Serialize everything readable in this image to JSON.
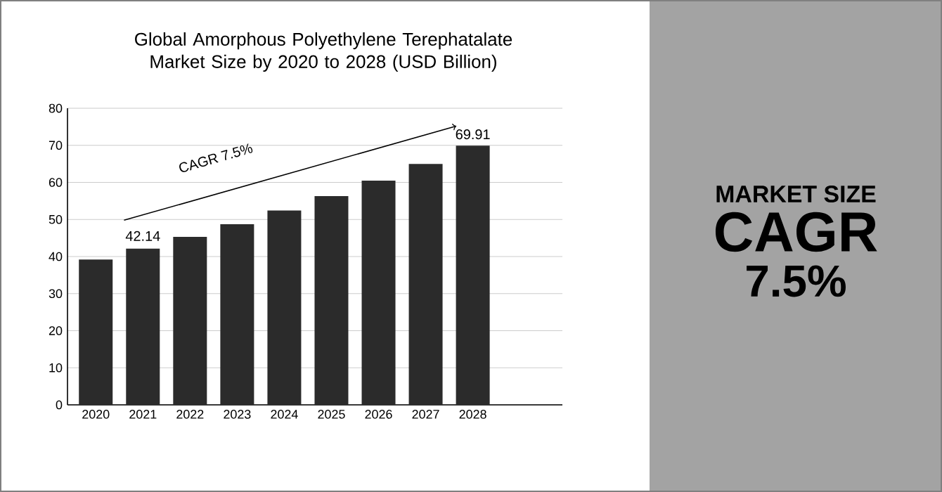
{
  "chart_data": [
    {
      "type": "bar",
      "title": "Global Amorphous Polyethylene Terephatalate Market Size by 2020 to 2028 (USD Billion)",
      "categories": [
        "2020",
        "2021",
        "2022",
        "2023",
        "2024",
        "2025",
        "2026",
        "2027",
        "2028"
      ],
      "values": [
        39.2,
        42.14,
        45.3,
        48.7,
        52.4,
        56.3,
        60.5,
        65.0,
        69.91
      ],
      "value_labels": [
        null,
        "42.14",
        null,
        null,
        null,
        null,
        null,
        null,
        "69.91"
      ],
      "color": "#2b2b2b",
      "ylim": [
        0,
        80
      ],
      "yticks": [
        0,
        10,
        20,
        30,
        40,
        50,
        60,
        70,
        80
      ],
      "grid": "y",
      "annotations": [
        "CAGR 7.5%"
      ]
    },
    {
      "type": "other",
      "annotations": [
        "MARKET SIZE",
        "CAGR",
        "7.5%"
      ]
    }
  ]
}
